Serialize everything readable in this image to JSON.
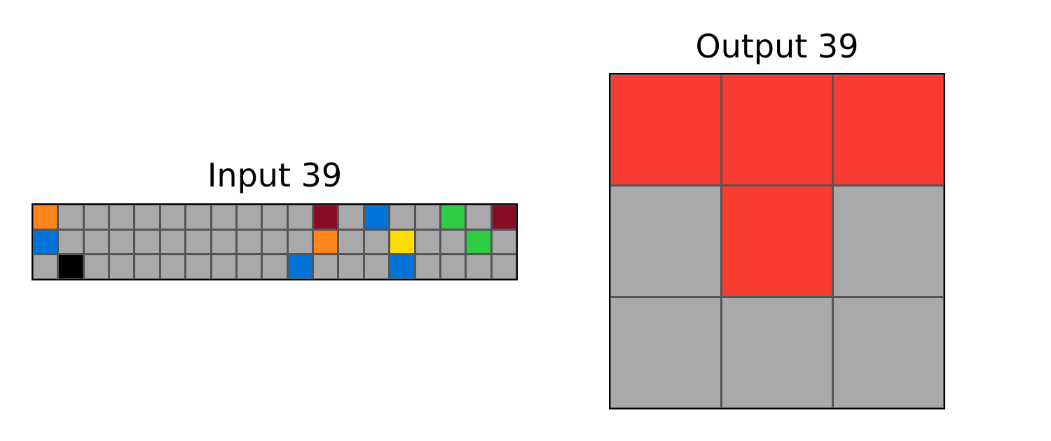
{
  "palette": {
    "0": "#000000",
    "1": "#0074D9",
    "2": "#F93C31",
    "3": "#2ECC40",
    "4": "#FFDC00",
    "5": "#A9A8AB",
    "6": "#E53AA3",
    "7": "#FF851B",
    "8": "#87D8F1",
    "9": "#870C25"
  },
  "input": {
    "title": "Input 39",
    "rows": 3,
    "cols": 19,
    "cells": [
      [
        7,
        5,
        5,
        5,
        5,
        5,
        5,
        5,
        5,
        5,
        5,
        9,
        5,
        1,
        5,
        5,
        3,
        5,
        9
      ],
      [
        1,
        5,
        5,
        5,
        5,
        5,
        5,
        5,
        5,
        5,
        5,
        7,
        5,
        5,
        4,
        5,
        5,
        3,
        5
      ],
      [
        5,
        0,
        5,
        5,
        5,
        5,
        5,
        5,
        5,
        5,
        1,
        5,
        5,
        5,
        1,
        5,
        5,
        5,
        5
      ]
    ]
  },
  "output": {
    "title": "Output 39",
    "rows": 3,
    "cols": 3,
    "cells": [
      [
        2,
        2,
        2
      ],
      [
        5,
        2,
        5
      ],
      [
        5,
        5,
        5
      ]
    ]
  }
}
